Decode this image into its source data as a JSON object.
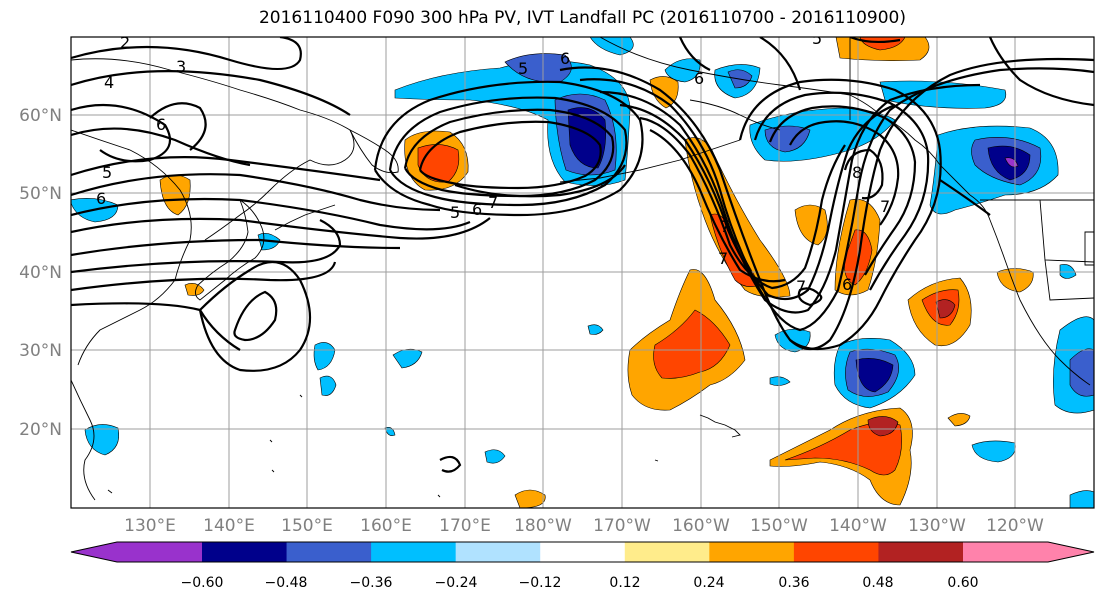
{
  "title": "2016110400 F090 300 hPa PV, IVT Landfall PC (2016110700 - 2016110900)",
  "lat_labels": [
    "60°N",
    "50°N",
    "40°N",
    "30°N",
    "20°N"
  ],
  "lon_labels": [
    "130°E",
    "140°E",
    "150°E",
    "160°E",
    "170°E",
    "180°W",
    "170°W",
    "160°W",
    "150°W",
    "140°W",
    "130°W",
    "120°W"
  ],
  "colorbar": {
    "colors": [
      "#9932cc",
      "#00008b",
      "#3a5fcd",
      "#00bfff",
      "#b0e2ff",
      "#ffffff",
      "#ffec8b",
      "#ffa500",
      "#ff4500",
      "#b22222",
      "#ff82ab"
    ],
    "tick_labels": [
      "−0.60",
      "−0.48",
      "−0.36",
      "−0.24",
      "−0.12",
      "0.12",
      "0.24",
      "0.36",
      "0.48",
      "0.60"
    ]
  },
  "contour_labels": [
    "2",
    "3",
    "4",
    "6",
    "5",
    "6",
    "7",
    "5",
    "6",
    "5",
    "6",
    "7",
    "8",
    "7",
    "6",
    "5",
    "6",
    "7",
    "7"
  ],
  "map": {
    "projection": "PlateCarree",
    "lon_range": [
      "120°E",
      "~111°W"
    ],
    "lat_range": [
      "10°N",
      "70°N"
    ],
    "fill_field": "IVT Landfall PC",
    "contour_field": "300 hPa PV",
    "gridlines": true,
    "coastlines": true
  }
}
